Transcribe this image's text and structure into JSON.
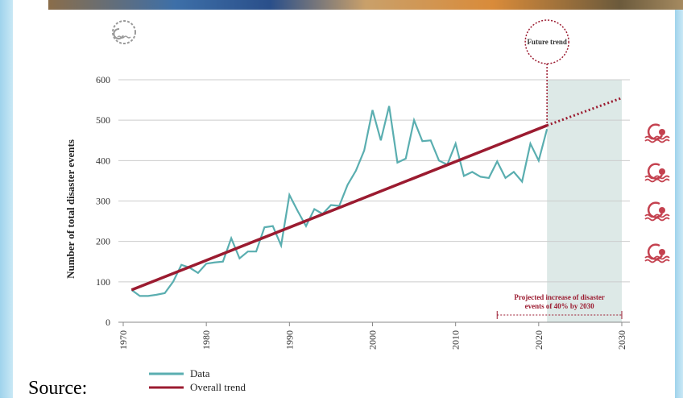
{
  "chart_data": {
    "type": "line",
    "y_label": "Number of total disaster events",
    "x": [
      1971,
      1972,
      1973,
      1974,
      1975,
      1976,
      1977,
      1978,
      1979,
      1980,
      1981,
      1982,
      1983,
      1984,
      1985,
      1986,
      1987,
      1988,
      1989,
      1990,
      1991,
      1992,
      1993,
      1994,
      1995,
      1996,
      1997,
      1998,
      1999,
      2000,
      2001,
      2002,
      2003,
      2004,
      2005,
      2006,
      2007,
      2008,
      2009,
      2010,
      2011,
      2012,
      2013,
      2014,
      2015,
      2016,
      2017,
      2018,
      2019,
      2020,
      2021
    ],
    "series": [
      {
        "name": "Data",
        "color": "#5aaeb0",
        "values": [
          80,
          65,
          65,
          68,
          72,
          100,
          142,
          135,
          122,
          145,
          148,
          150,
          208,
          158,
          175,
          175,
          235,
          238,
          190,
          315,
          275,
          238,
          280,
          268,
          290,
          288,
          340,
          375,
          425,
          525,
          450,
          535,
          395,
          405,
          500,
          448,
          450,
          400,
          390,
          442,
          362,
          372,
          360,
          357,
          398,
          357,
          372,
          348,
          442,
          400,
          478
        ]
      }
    ],
    "trend": {
      "name": "Overall trend",
      "color": "#9b1b30",
      "x": [
        1971,
        2021
      ],
      "values": [
        80,
        487
      ]
    },
    "future": {
      "label": "Future trend",
      "x": [
        2021,
        2030
      ],
      "values": [
        487,
        555
      ]
    },
    "shade": [
      2021,
      2030
    ],
    "annotation": {
      "text": [
        "Projected increase of disaster",
        "events of 40% by 2030"
      ],
      "x": [
        2015,
        2030
      ]
    },
    "xlim": [
      1970,
      2030
    ],
    "xticks": [
      1970,
      1980,
      1990,
      2000,
      2010,
      2020,
      2030
    ],
    "ylim": [
      0,
      600
    ],
    "yticks": [
      0,
      100,
      200,
      300,
      400,
      500,
      600
    ],
    "grid": true
  },
  "source": "Source:"
}
